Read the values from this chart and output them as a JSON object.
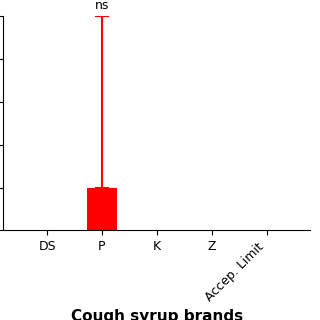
{
  "categories": [
    "DS",
    "P",
    "K",
    "Z",
    "Accep. Limit"
  ],
  "values": [
    0,
    200000,
    0,
    0,
    0
  ],
  "error_low": [
    0,
    0,
    0,
    0,
    0
  ],
  "error_high": [
    0,
    800000,
    0,
    0,
    0
  ],
  "bar_color": "#ff0000",
  "bar_index": 1,
  "bar_width": 0.55,
  "ylim": [
    0,
    1000000
  ],
  "yticks": [
    0,
    200000,
    400000,
    600000,
    800000,
    1000000
  ],
  "xlabel": "Cough syrup brands",
  "xlabel_fontsize": 11,
  "xlabel_fontweight": "bold",
  "annotation_text": "ns",
  "tick_fontsize": 9,
  "background_color": "#ffffff",
  "error_capsize": 5,
  "error_linewidth": 1.5
}
